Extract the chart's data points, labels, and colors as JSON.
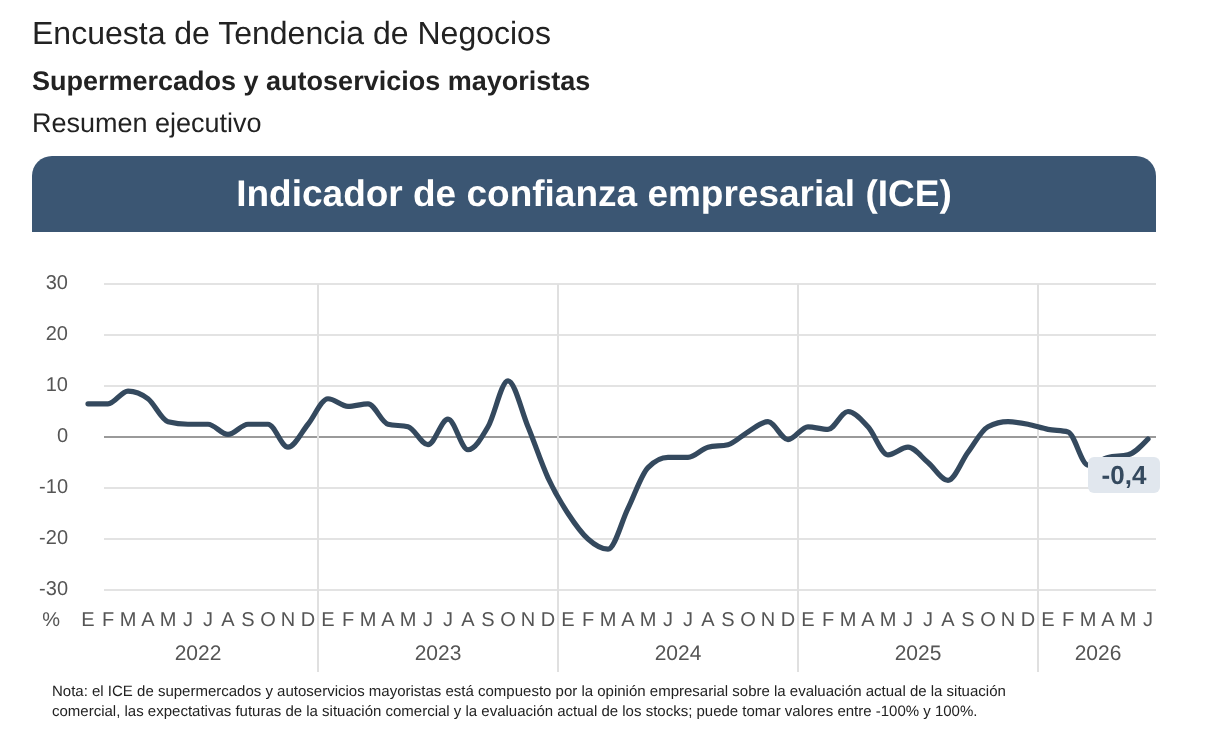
{
  "chart_data": {
    "type": "line",
    "title": "Encuesta de Tendencia de Negocios",
    "subtitle": "Supermercados y autoservicios mayoristas",
    "ylabel": "%",
    "annotations": [
      "Resumen ejecutivo",
      "Indicador de confianza empresarial (ICE)",
      "Nota: el ICE de supermercados y autoservicios mayoristas está compuesto por la opinión empresarial sobre la evaluación actual de la situación comercial, las expectativas futuras de la situación comercial y la evaluación actual de los stocks; puede tomar valores entre -100% y 100%.",
      "2022",
      "2023",
      "2024",
      "2025",
      "2026"
    ],
    "categories": [
      "E",
      "F",
      "M",
      "A",
      "M",
      "J",
      "J",
      "A",
      "S",
      "O",
      "N",
      "D",
      "E",
      "F",
      "M",
      "A",
      "M",
      "J",
      "J",
      "A",
      "S",
      "O",
      "N",
      "D",
      "E",
      "F",
      "M",
      "A",
      "M",
      "J",
      "J",
      "A",
      "S",
      "O",
      "N",
      "D",
      "E",
      "F",
      "M",
      "A",
      "M",
      "J",
      "J",
      "A",
      "S",
      "O",
      "N",
      "D",
      "E",
      "F",
      "M",
      "A",
      "M",
      "J"
    ],
    "series": [
      {
        "color": "#34495e",
        "values": [
          6.5,
          6.5,
          9,
          7.5,
          3,
          2.5,
          2.5,
          0.5,
          2.5,
          2.5,
          -2,
          2.5,
          7.5,
          6,
          6.5,
          2.5,
          2,
          -1.5,
          3.5,
          -2.5,
          2,
          11,
          2,
          -8,
          -15,
          -20,
          -22,
          -14,
          -6,
          -4,
          -4,
          -2,
          -1.5,
          1,
          3,
          -0.5,
          2,
          1.5,
          5,
          2,
          -3.5,
          -2,
          -5,
          -8.5,
          -3,
          2,
          3,
          2.5,
          1.5,
          1,
          -5.5,
          -4,
          -3.5,
          -0.4
        ],
        "value_labels": [
          null,
          null,
          null,
          null,
          null,
          null,
          null,
          null,
          null,
          null,
          null,
          null,
          null,
          null,
          null,
          null,
          null,
          null,
          null,
          null,
          null,
          null,
          null,
          null,
          null,
          null,
          null,
          null,
          null,
          null,
          null,
          null,
          null,
          null,
          null,
          null,
          null,
          null,
          null,
          null,
          null,
          null,
          null,
          null,
          null,
          null,
          null,
          null,
          null,
          null,
          null,
          null,
          null,
          "-0,4"
        ]
      }
    ],
    "ylim": [
      -30,
      30
    ],
    "yticks": [
      -30,
      -20,
      -10,
      0,
      10,
      20,
      30
    ],
    "grid": "y",
    "marker": "none",
    "line_style": "solid"
  }
}
